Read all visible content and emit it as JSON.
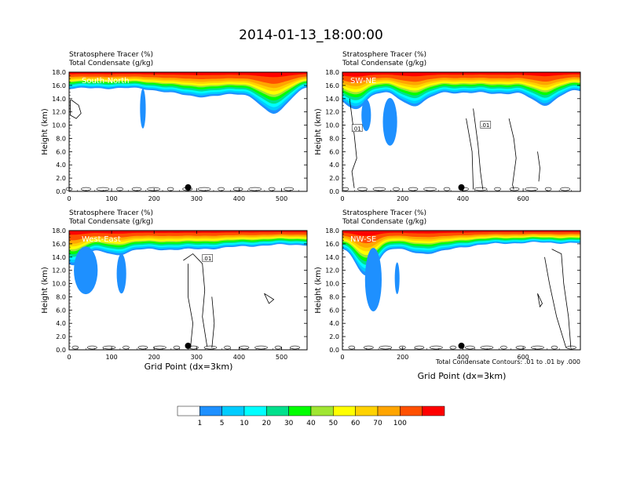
{
  "title": "2014-01-13_18:00:00",
  "chart_data": [
    {
      "type": "heatmap",
      "label_field": "Stratosphere Tracer   (%)",
      "label_contour": "Total Condensate   (g/kg)",
      "section_label": "South-North",
      "ylabel": "Height (km)",
      "xlabel": "",
      "xlim": [
        0,
        560
      ],
      "ylim": [
        0,
        18
      ],
      "xticks": [
        "0",
        "100",
        "200",
        "300",
        "400",
        "500"
      ],
      "yticks": [
        "0.0",
        "2.0",
        "4.0",
        "6.0",
        "8.0",
        "10.0",
        "12.0",
        "14.0",
        "16.0",
        "18.0"
      ],
      "marker_x": 280,
      "contour_labels": []
    },
    {
      "type": "heatmap",
      "label_field": "Stratosphere Tracer   (%)",
      "label_contour": "Total Condensate   (g/kg)",
      "section_label": "SW-NE",
      "ylabel": "Height (km)",
      "xlabel": "",
      "xlim": [
        0,
        790
      ],
      "ylim": [
        0,
        18
      ],
      "xticks": [
        "0",
        "200",
        "400",
        "600"
      ],
      "yticks": [
        "0.0",
        "2.0",
        "4.0",
        "6.0",
        "8.0",
        "10.0",
        "12.0",
        "14.0",
        "16.0",
        "18.0"
      ],
      "marker_x": 395,
      "contour_labels": [
        ".01",
        ".01"
      ]
    },
    {
      "type": "heatmap",
      "label_field": "Stratosphere Tracer   (%)",
      "label_contour": "Total Condensate   (g/kg)",
      "section_label": "West-East",
      "ylabel": "Height (km)",
      "xlabel": "Grid Point (dx=3km)",
      "xlim": [
        0,
        560
      ],
      "ylim": [
        0,
        18
      ],
      "xticks": [
        "0",
        "100",
        "200",
        "300",
        "400",
        "500"
      ],
      "yticks": [
        "0.0",
        "2.0",
        "4.0",
        "6.0",
        "8.0",
        "10.0",
        "12.0",
        "14.0",
        "16.0",
        "18.0"
      ],
      "marker_x": 280,
      "contour_labels": [
        ".01"
      ]
    },
    {
      "type": "heatmap",
      "label_field": "Stratosphere Tracer   (%)",
      "label_contour": "Total Condensate   (g/kg)",
      "section_label": "NW-SE",
      "ylabel": "Height (km)",
      "xlabel": "Grid Point (dx=3km)",
      "xlim": [
        0,
        790
      ],
      "ylim": [
        0,
        18
      ],
      "xticks": [
        "0",
        "200",
        "400",
        "600"
      ],
      "yticks": [
        "0.0",
        "2.0",
        "4.0",
        "6.0",
        "8.0",
        "10.0",
        "12.0",
        "14.0",
        "16.0",
        "18.0"
      ],
      "marker_x": 395,
      "contour_labels": []
    }
  ],
  "contour_note": "Total Condensate Contours: .01 to .01 by .000",
  "colorbar": {
    "colors": [
      "#ffffff",
      "#1e90ff",
      "#00ccff",
      "#00ffff",
      "#00e08c",
      "#00ff00",
      "#a0e632",
      "#ffff00",
      "#ffd200",
      "#ffa500",
      "#ff5000",
      "#ff0000"
    ],
    "labels": [
      "1",
      "5",
      "10",
      "20",
      "30",
      "40",
      "50",
      "60",
      "70",
      "100"
    ]
  }
}
